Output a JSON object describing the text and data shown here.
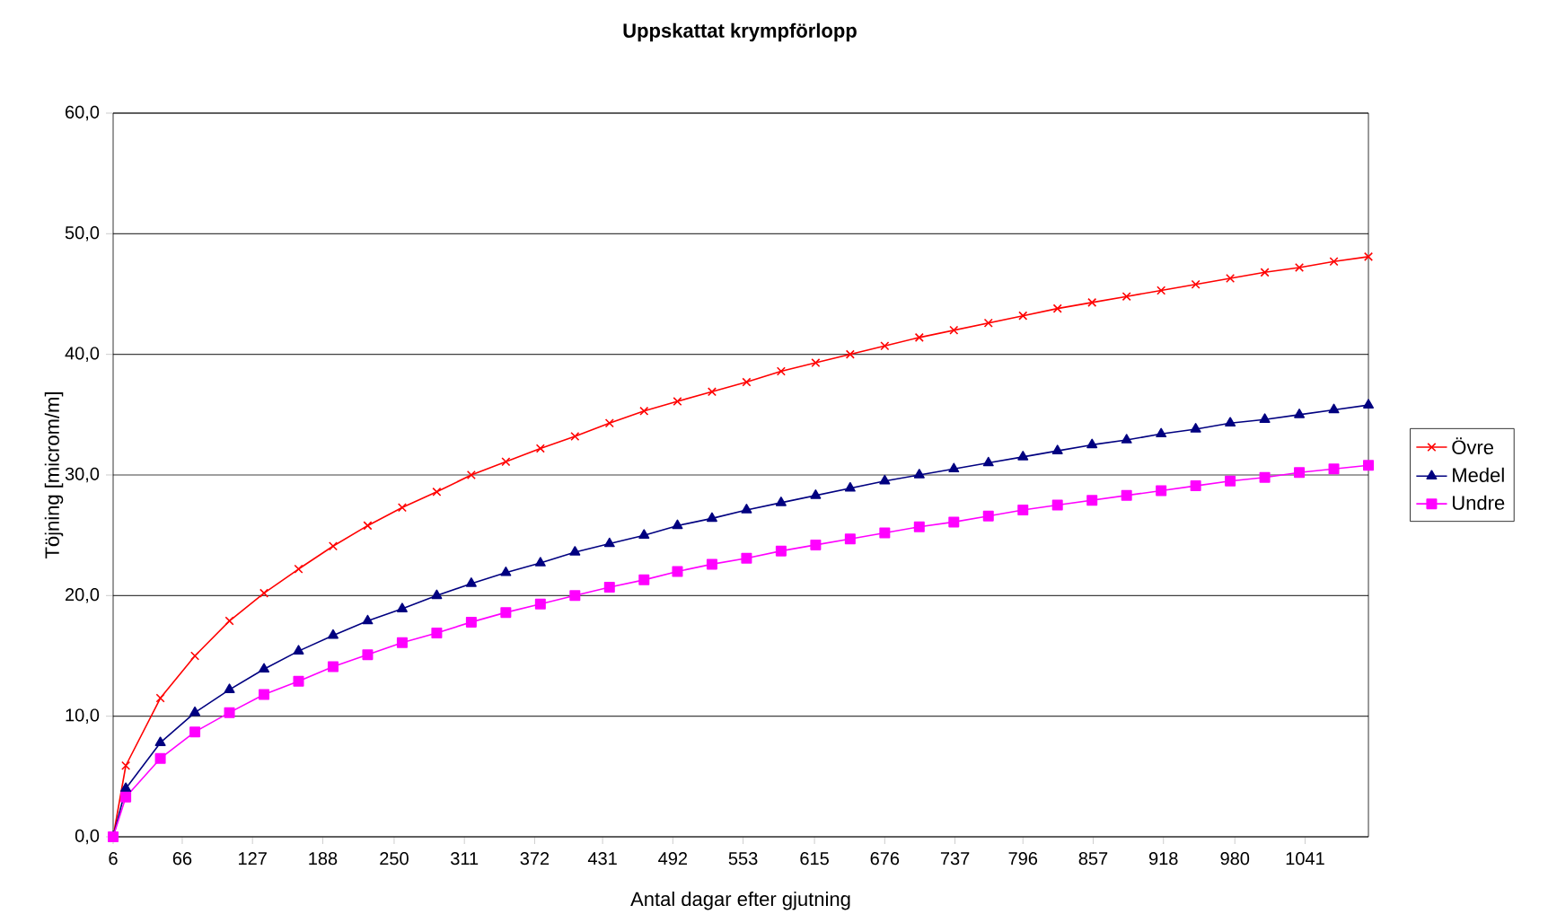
{
  "chart_data": {
    "type": "line",
    "title": "Uppskattat krympförlopp",
    "xlabel": "Antal dagar efter gjutning",
    "ylabel": "Töjning [microm/m]",
    "x": [
      6,
      17,
      47,
      77,
      107,
      137,
      167,
      197,
      227,
      257,
      287,
      317,
      347,
      377,
      407,
      437,
      467,
      496,
      526,
      556,
      586,
      616,
      646,
      676,
      706,
      736,
      766,
      796,
      826,
      856,
      886,
      916,
      946,
      976,
      1006,
      1036,
      1066,
      1096
    ],
    "series": [
      {
        "name": "Övre",
        "color": "#ff0000",
        "marker": "cross",
        "values": [
          0,
          5.9,
          11.5,
          15.0,
          17.9,
          20.2,
          22.2,
          24.1,
          25.8,
          27.3,
          28.6,
          30.0,
          31.1,
          32.2,
          33.2,
          34.3,
          35.3,
          36.1,
          36.9,
          37.7,
          38.6,
          39.3,
          40.0,
          40.7,
          41.4,
          42.0,
          42.6,
          43.2,
          43.8,
          44.3,
          44.8,
          45.3,
          45.8,
          46.3,
          46.8,
          47.2,
          47.7,
          48.1
        ]
      },
      {
        "name": "Medel",
        "color": "#000080",
        "marker": "triangle",
        "values": [
          0,
          4.0,
          7.8,
          10.3,
          12.2,
          13.9,
          15.4,
          16.7,
          17.9,
          18.9,
          20.0,
          21.0,
          21.9,
          22.7,
          23.6,
          24.3,
          25.0,
          25.8,
          26.4,
          27.1,
          27.7,
          28.3,
          28.9,
          29.5,
          30.0,
          30.5,
          31.0,
          31.5,
          32.0,
          32.5,
          32.9,
          33.4,
          33.8,
          34.3,
          34.6,
          35.0,
          35.4,
          35.8
        ]
      },
      {
        "name": "Undre",
        "color": "#ff00ff",
        "marker": "square",
        "values": [
          0,
          3.3,
          6.5,
          8.7,
          10.3,
          11.8,
          12.9,
          14.1,
          15.1,
          16.1,
          16.9,
          17.8,
          18.6,
          19.3,
          20.0,
          20.7,
          21.3,
          22.0,
          22.6,
          23.1,
          23.7,
          24.2,
          24.7,
          25.2,
          25.7,
          26.1,
          26.6,
          27.1,
          27.5,
          27.9,
          28.3,
          28.7,
          29.1,
          29.5,
          29.8,
          30.2,
          30.5,
          30.8
        ]
      }
    ],
    "xlim": [
      6,
      1096
    ],
    "xticks": [
      6,
      66,
      127,
      188,
      250,
      311,
      372,
      431,
      492,
      553,
      615,
      676,
      737,
      796,
      857,
      918,
      980,
      1041
    ],
    "ylim": [
      0,
      60
    ],
    "yticks": [
      {
        "value": 0,
        "label": "0,0"
      },
      {
        "value": 10,
        "label": "10,0"
      },
      {
        "value": 20,
        "label": "20,0"
      },
      {
        "value": 30,
        "label": "30,0"
      },
      {
        "value": 40,
        "label": "40,0"
      },
      {
        "value": 50,
        "label": "50,0"
      },
      {
        "value": 60,
        "label": "60,0"
      }
    ],
    "grid": "y",
    "legend": "right",
    "line_style": "solid"
  }
}
